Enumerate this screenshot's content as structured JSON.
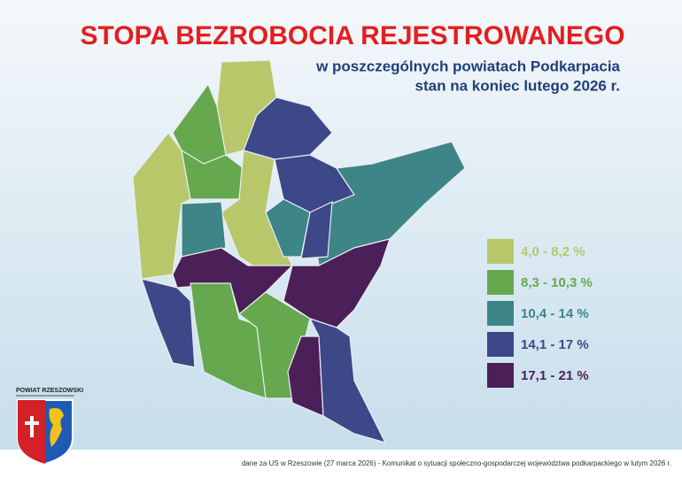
{
  "header": {
    "title": "STOPA BEZROBOCIA REJESTROWANEGO",
    "subtitle_lines": [
      "w poszczególnych powiatach Podkarpacia",
      "stan na koniec lutego 2026 r."
    ]
  },
  "legend": {
    "items": [
      {
        "label": "4,0 - 8,2 %",
        "color": "#b7c76a"
      },
      {
        "label": "8,3 - 10,3 %",
        "color": "#65a84e"
      },
      {
        "label": "10,4 - 14 %",
        "color": "#3d8587"
      },
      {
        "label": "14,1 - 17 %",
        "color": "#3c4888"
      },
      {
        "label": "17,1 - 21 %",
        "color": "#4b1f58"
      }
    ]
  },
  "emblem": {
    "label": "POWIAT RZESZOWSKI"
  },
  "footer": {
    "source": "dane za US w Rzeszowie (27 marca 2026) - Komunikat o sytuacji społeczno-gospodarczej województwa podkarpackiego w lutym 2026 r."
  }
}
